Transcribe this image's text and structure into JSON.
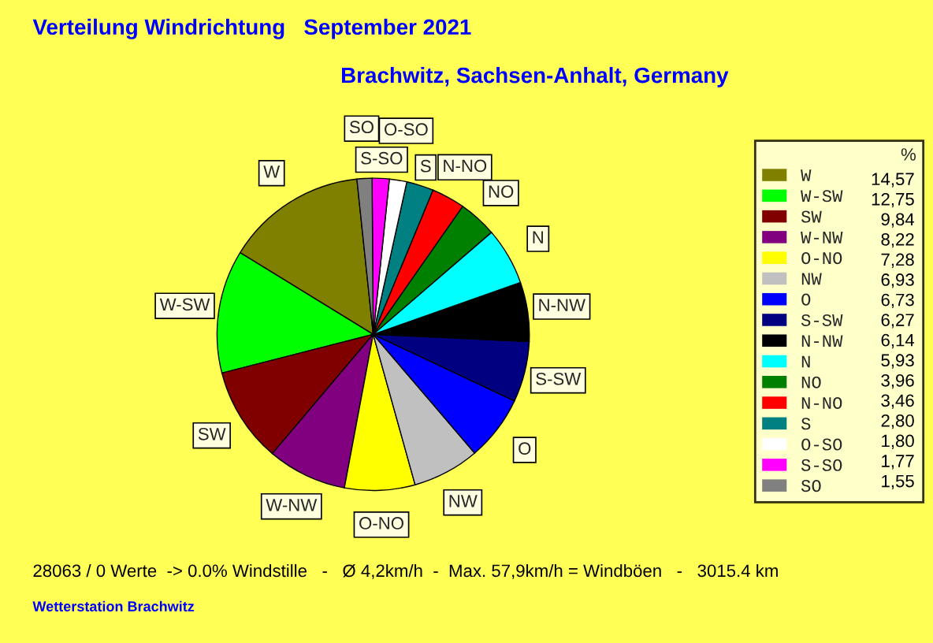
{
  "chart_data": {
    "type": "pie",
    "title": "Verteilung Windrichtung   September 2021",
    "subtitle": "Brachwitz, Sachsen-Anhalt, Germany",
    "categories": [
      "W",
      "W-SW",
      "SW",
      "W-NW",
      "O-NO",
      "NW",
      "O",
      "S-SW",
      "N-NW",
      "N",
      "NO",
      "N-NO",
      "S",
      "O-SO",
      "S-SO",
      "SO"
    ],
    "values": [
      14.57,
      12.75,
      9.84,
      8.22,
      7.28,
      6.93,
      6.73,
      6.27,
      6.14,
      5.93,
      3.96,
      3.46,
      2.8,
      1.8,
      1.77,
      1.55
    ],
    "value_labels": [
      "14,57",
      "12,75",
      "9,84",
      "8,22",
      "7,28",
      "6,93",
      "6,73",
      "6,27",
      "6,14",
      "5,93",
      "3,96",
      "3,46",
      "2,80",
      "1,80",
      "1,77",
      "1,55"
    ],
    "colors": [
      "#808000",
      "#00ff00",
      "#800000",
      "#800080",
      "#ffff00",
      "#c0c0c0",
      "#0000ff",
      "#000080",
      "#000000",
      "#00ffff",
      "#008000",
      "#ff0000",
      "#008080",
      "#ffffff",
      "#ff00ff",
      "#808080"
    ],
    "legend_title": "%",
    "legend": "right",
    "annotations": [
      "28063 / 0 Werte  -> 0.0% Windstille   -   Ø 4,2km/h  -  Max. 57,9km/h = Windböen   -   3015.4 km",
      "Wetterstation Brachwitz"
    ]
  }
}
